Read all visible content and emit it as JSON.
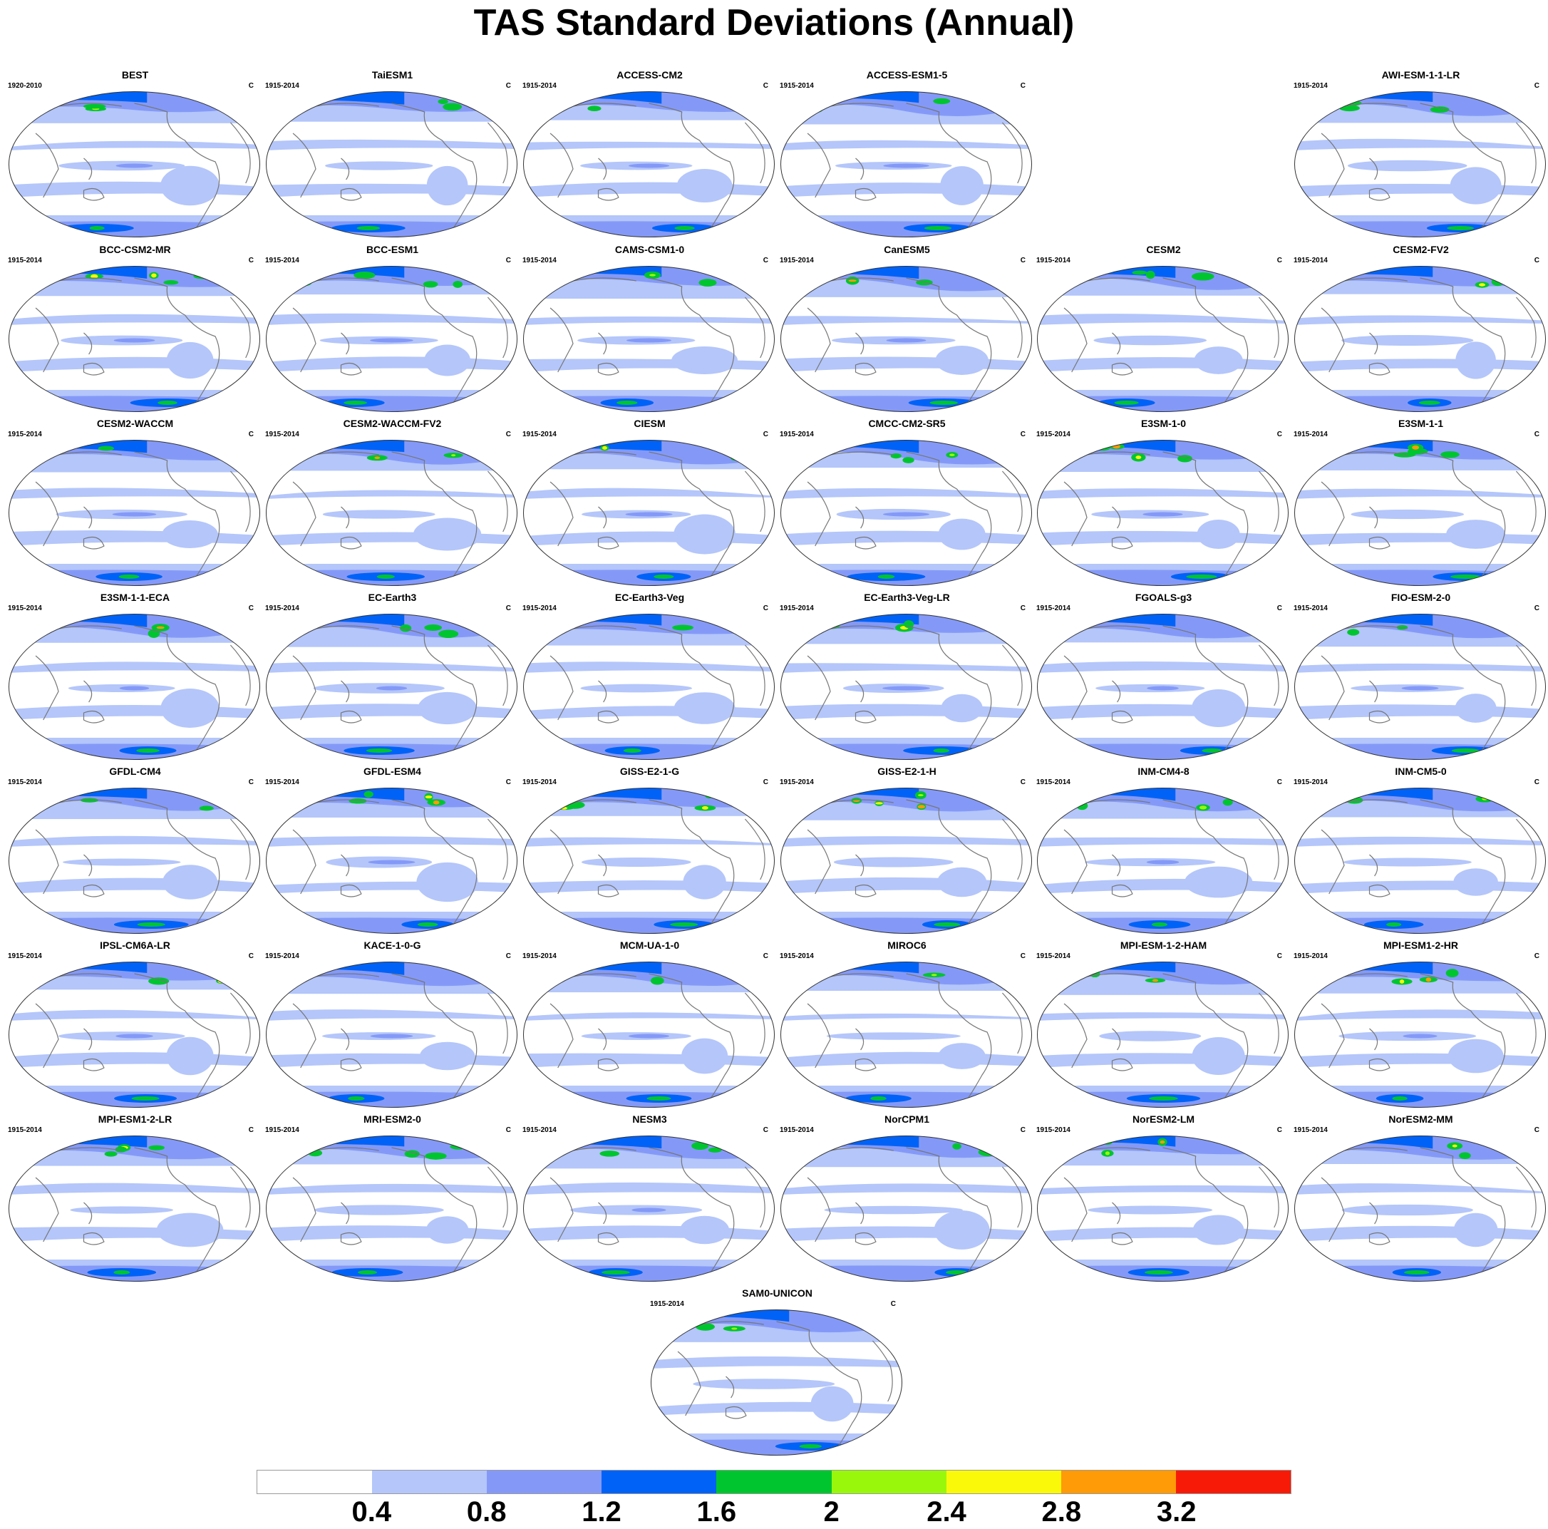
{
  "figure": {
    "title": "TAS Standard Deviations (Annual)"
  },
  "panels": [
    {
      "model": "BEST",
      "years": "1920-2010",
      "unit": "C"
    },
    {
      "model": "TaiESM1",
      "years": "1915-2014",
      "unit": "C"
    },
    {
      "model": "ACCESS-CM2",
      "years": "1915-2014",
      "unit": "C"
    },
    {
      "model": "ACCESS-ESM1-5",
      "years": "1915-2014",
      "unit": "C"
    },
    {
      "model": "AWI-ESM-1-1-LR",
      "years": "1915-2014",
      "unit": "C"
    },
    {
      "model": "BCC-CSM2-MR",
      "years": "1915-2014",
      "unit": "C"
    },
    {
      "model": "BCC-ESM1",
      "years": "1915-2014",
      "unit": "C"
    },
    {
      "model": "CAMS-CSM1-0",
      "years": "1915-2014",
      "unit": "C"
    },
    {
      "model": "CanESM5",
      "years": "1915-2014",
      "unit": "C"
    },
    {
      "model": "CESM2",
      "years": "1915-2014",
      "unit": "C"
    },
    {
      "model": "CESM2-FV2",
      "years": "1915-2014",
      "unit": "C"
    },
    {
      "model": "CESM2-WACCM",
      "years": "1915-2014",
      "unit": "C"
    },
    {
      "model": "CESM2-WACCM-FV2",
      "years": "1915-2014",
      "unit": "C"
    },
    {
      "model": "CIESM",
      "years": "1915-2014",
      "unit": "C"
    },
    {
      "model": "CMCC-CM2-SR5",
      "years": "1915-2014",
      "unit": "C"
    },
    {
      "model": "E3SM-1-0",
      "years": "1915-2014",
      "unit": "C"
    },
    {
      "model": "E3SM-1-1",
      "years": "1915-2014",
      "unit": "C"
    },
    {
      "model": "E3SM-1-1-ECA",
      "years": "1915-2014",
      "unit": "C"
    },
    {
      "model": "EC-Earth3",
      "years": "1915-2014",
      "unit": "C"
    },
    {
      "model": "EC-Earth3-Veg",
      "years": "1915-2014",
      "unit": "C"
    },
    {
      "model": "EC-Earth3-Veg-LR",
      "years": "1915-2014",
      "unit": "C"
    },
    {
      "model": "FGOALS-g3",
      "years": "1915-2014",
      "unit": "C"
    },
    {
      "model": "FIO-ESM-2-0",
      "years": "1915-2014",
      "unit": "C"
    },
    {
      "model": "GFDL-CM4",
      "years": "1915-2014",
      "unit": "C"
    },
    {
      "model": "GFDL-ESM4",
      "years": "1915-2014",
      "unit": "C"
    },
    {
      "model": "GISS-E2-1-G",
      "years": "1915-2014",
      "unit": "C"
    },
    {
      "model": "GISS-E2-1-H",
      "years": "1915-2014",
      "unit": "C"
    },
    {
      "model": "INM-CM4-8",
      "years": "1915-2014",
      "unit": "C"
    },
    {
      "model": "INM-CM5-0",
      "years": "1915-2014",
      "unit": "C"
    },
    {
      "model": "IPSL-CM6A-LR",
      "years": "1915-2014",
      "unit": "C"
    },
    {
      "model": "KACE-1-0-G",
      "years": "1915-2014",
      "unit": "C"
    },
    {
      "model": "MCM-UA-1-0",
      "years": "1915-2014",
      "unit": "C"
    },
    {
      "model": "MIROC6",
      "years": "1915-2014",
      "unit": "C"
    },
    {
      "model": "MPI-ESM-1-2-HAM",
      "years": "1915-2014",
      "unit": "C"
    },
    {
      "model": "MPI-ESM1-2-HR",
      "years": "1915-2014",
      "unit": "C"
    },
    {
      "model": "MPI-ESM1-2-LR",
      "years": "1915-2014",
      "unit": "C"
    },
    {
      "model": "MRI-ESM2-0",
      "years": "1915-2014",
      "unit": "C"
    },
    {
      "model": "NESM3",
      "years": "1915-2014",
      "unit": "C"
    },
    {
      "model": "NorCPM1",
      "years": "1915-2014",
      "unit": "C"
    },
    {
      "model": "NorESM2-LM",
      "years": "1915-2014",
      "unit": "C"
    },
    {
      "model": "NorESM2-MM",
      "years": "1915-2014",
      "unit": "C"
    },
    {
      "model": "SAM0-UNICON",
      "years": "1915-2014",
      "unit": "C"
    }
  ],
  "colorbar": {
    "colors": [
      "#ffffff",
      "#b4c6fa",
      "#8499f7",
      "#0062f7",
      "#00c52f",
      "#99f70c",
      "#fbf90a",
      "#ff9b06",
      "#f71b07"
    ],
    "labels": [
      "0.4",
      "0.8",
      "1.2",
      "1.6",
      "2",
      "2.4",
      "2.8",
      "3.2"
    ]
  }
}
